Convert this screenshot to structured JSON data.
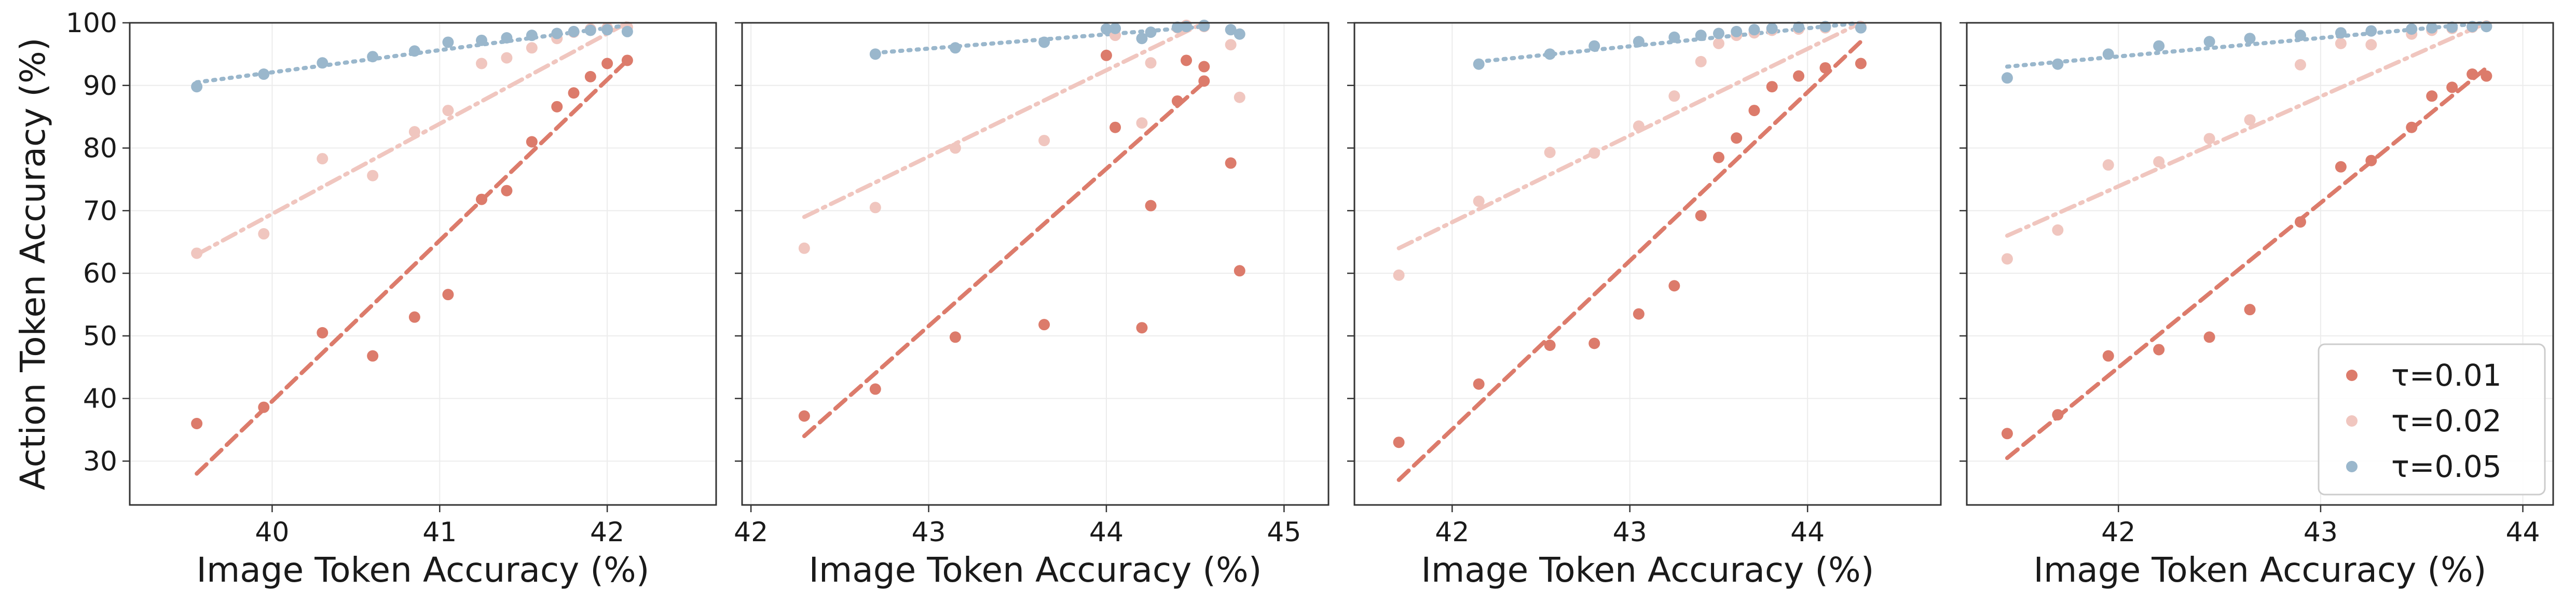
{
  "chart_data": [
    {
      "type": "scatter",
      "xlabel": "Image Token Accuracy (%)",
      "ylabel": "Action Token Accuracy (%)",
      "xlim": [
        39.15,
        42.65
      ],
      "ylim": [
        23,
        100
      ],
      "xticks": [
        40,
        41,
        42
      ],
      "yticks": [
        30,
        40,
        50,
        60,
        70,
        80,
        90,
        100
      ],
      "grid": true,
      "series": [
        {
          "name": "τ=0.01",
          "color": "#dc7b6b",
          "points": [
            [
              39.55,
              36.0
            ],
            [
              39.95,
              38.6
            ],
            [
              40.3,
              50.5
            ],
            [
              40.6,
              46.8
            ],
            [
              40.85,
              53.0
            ],
            [
              41.05,
              56.6
            ],
            [
              41.25,
              71.8
            ],
            [
              41.4,
              73.2
            ],
            [
              41.55,
              81.0
            ],
            [
              41.7,
              86.6
            ],
            [
              41.8,
              88.8
            ],
            [
              41.9,
              91.4
            ],
            [
              42.0,
              93.5
            ],
            [
              42.12,
              94.0
            ]
          ],
          "trend": {
            "style": "dashed",
            "x": [
              39.55,
              42.12
            ],
            "y": [
              28,
              94
            ]
          }
        },
        {
          "name": "τ=0.02",
          "color": "#f0c6bf",
          "points": [
            [
              39.55,
              63.2
            ],
            [
              39.95,
              66.3
            ],
            [
              40.3,
              78.3
            ],
            [
              40.6,
              75.6
            ],
            [
              40.85,
              82.6
            ],
            [
              41.05,
              86.0
            ],
            [
              41.25,
              93.5
            ],
            [
              41.4,
              94.4
            ],
            [
              41.55,
              96.0
            ],
            [
              41.7,
              97.5
            ],
            [
              41.8,
              98.5
            ],
            [
              41.9,
              99.0
            ],
            [
              42.0,
              99.2
            ],
            [
              42.12,
              99.3
            ]
          ],
          "trend": {
            "style": "dashdot",
            "x": [
              39.55,
              42.12
            ],
            "y": [
              63,
              100
            ]
          }
        },
        {
          "name": "τ=0.05",
          "color": "#9ab7cc",
          "points": [
            [
              39.55,
              89.8
            ],
            [
              39.95,
              91.8
            ],
            [
              40.3,
              93.6
            ],
            [
              40.6,
              94.6
            ],
            [
              40.85,
              95.5
            ],
            [
              41.05,
              96.9
            ],
            [
              41.25,
              97.2
            ],
            [
              41.4,
              97.6
            ],
            [
              41.55,
              98.0
            ],
            [
              41.7,
              98.3
            ],
            [
              41.8,
              98.6
            ],
            [
              41.9,
              98.8
            ],
            [
              42.0,
              98.9
            ],
            [
              42.12,
              98.6
            ]
          ],
          "trend": {
            "style": "dotted",
            "x": [
              39.55,
              42.12
            ],
            "y": [
              90.5,
              99.6
            ]
          }
        }
      ]
    },
    {
      "type": "scatter",
      "xlabel": "Image Token Accuracy (%)",
      "ylabel": "",
      "xlim": [
        41.95,
        45.25
      ],
      "ylim": [
        23,
        100
      ],
      "xticks": [
        42,
        43,
        44,
        45
      ],
      "yticks": [
        30,
        40,
        50,
        60,
        70,
        80,
        90,
        100
      ],
      "grid": true,
      "series": [
        {
          "name": "τ=0.01",
          "color": "#dc7b6b",
          "points": [
            [
              42.3,
              37.2
            ],
            [
              42.7,
              41.5
            ],
            [
              43.15,
              49.8
            ],
            [
              43.65,
              51.8
            ],
            [
              44.2,
              51.3
            ],
            [
              44.75,
              60.4
            ],
            [
              44.25,
              70.8
            ],
            [
              44.7,
              77.6
            ],
            [
              44.05,
              83.3
            ],
            [
              44.4,
              87.5
            ],
            [
              44.0,
              94.8
            ],
            [
              44.45,
              94.0
            ],
            [
              44.55,
              93.0
            ],
            [
              44.55,
              90.7
            ]
          ],
          "trend": {
            "style": "dashed",
            "x": [
              42.3,
              44.55
            ],
            "y": [
              34,
              90.5
            ]
          }
        },
        {
          "name": "τ=0.02",
          "color": "#f0c6bf",
          "points": [
            [
              42.3,
              64.0
            ],
            [
              42.7,
              70.5
            ],
            [
              43.15,
              80.0
            ],
            [
              43.65,
              81.2
            ],
            [
              44.2,
              84.0
            ],
            [
              44.75,
              88.1
            ],
            [
              44.25,
              93.6
            ],
            [
              44.7,
              96.5
            ],
            [
              44.05,
              98.0
            ],
            [
              44.4,
              99.2
            ],
            [
              44.0,
              99.0
            ],
            [
              44.45,
              99.6
            ],
            [
              44.55,
              99.5
            ],
            [
              44.55,
              99.4
            ]
          ],
          "trend": {
            "style": "dashdot",
            "x": [
              42.3,
              44.55
            ],
            "y": [
              69,
              100
            ]
          }
        },
        {
          "name": "τ=0.05",
          "color": "#9ab7cc",
          "points": [
            [
              42.7,
              95.0
            ],
            [
              43.15,
              96.0
            ],
            [
              43.65,
              96.9
            ],
            [
              44.2,
              97.5
            ],
            [
              44.75,
              98.2
            ],
            [
              44.25,
              98.5
            ],
            [
              44.7,
              98.9
            ],
            [
              44.05,
              99.1
            ],
            [
              44.4,
              99.3
            ],
            [
              44.0,
              99.0
            ],
            [
              44.45,
              99.4
            ],
            [
              44.55,
              99.5
            ],
            [
              44.55,
              99.6
            ]
          ],
          "trend": {
            "style": "dotted",
            "x": [
              42.7,
              44.55
            ],
            "y": [
              95.2,
              99.4
            ]
          }
        }
      ]
    },
    {
      "type": "scatter",
      "xlabel": "Image Token Accuracy (%)",
      "ylabel": "",
      "xlim": [
        41.45,
        44.75
      ],
      "ylim": [
        23,
        100
      ],
      "xticks": [
        42,
        43,
        44
      ],
      "yticks": [
        30,
        40,
        50,
        60,
        70,
        80,
        90,
        100
      ],
      "grid": true,
      "series": [
        {
          "name": "τ=0.01",
          "color": "#dc7b6b",
          "points": [
            [
              41.7,
              33.0
            ],
            [
              42.15,
              42.3
            ],
            [
              42.55,
              48.5
            ],
            [
              42.8,
              48.8
            ],
            [
              43.05,
              53.5
            ],
            [
              43.25,
              58.0
            ],
            [
              43.4,
              69.2
            ],
            [
              43.5,
              78.5
            ],
            [
              43.6,
              81.6
            ],
            [
              43.7,
              86.0
            ],
            [
              43.8,
              89.8
            ],
            [
              43.95,
              91.5
            ],
            [
              44.1,
              92.8
            ],
            [
              44.3,
              93.5
            ]
          ],
          "trend": {
            "style": "dashed",
            "x": [
              41.7,
              44.3
            ],
            "y": [
              27,
              97
            ]
          }
        },
        {
          "name": "τ=0.02",
          "color": "#f0c6bf",
          "points": [
            [
              41.7,
              59.7
            ],
            [
              42.15,
              71.5
            ],
            [
              42.55,
              79.3
            ],
            [
              42.8,
              79.2
            ],
            [
              43.05,
              83.5
            ],
            [
              43.25,
              88.3
            ],
            [
              43.4,
              93.8
            ],
            [
              43.5,
              96.7
            ],
            [
              43.6,
              98.0
            ],
            [
              43.7,
              98.4
            ],
            [
              43.8,
              98.8
            ],
            [
              43.95,
              99.0
            ],
            [
              44.1,
              99.2
            ],
            [
              44.3,
              99.4
            ]
          ],
          "trend": {
            "style": "dashdot",
            "x": [
              41.7,
              44.3
            ],
            "y": [
              64,
              100
            ]
          }
        },
        {
          "name": "τ=0.05",
          "color": "#9ab7cc",
          "points": [
            [
              42.15,
              93.4
            ],
            [
              42.55,
              95.0
            ],
            [
              42.8,
              96.3
            ],
            [
              43.05,
              97.0
            ],
            [
              43.25,
              97.7
            ],
            [
              43.4,
              98.0
            ],
            [
              43.5,
              98.3
            ],
            [
              43.6,
              98.6
            ],
            [
              43.7,
              98.9
            ],
            [
              43.8,
              99.1
            ],
            [
              43.95,
              99.3
            ],
            [
              44.1,
              99.4
            ],
            [
              44.3,
              99.2
            ]
          ],
          "trend": {
            "style": "dotted",
            "x": [
              42.15,
              44.3
            ],
            "y": [
              93.8,
              100
            ]
          }
        }
      ]
    },
    {
      "type": "scatter",
      "xlabel": "Image Token Accuracy (%)",
      "ylabel": "",
      "xlim": [
        41.25,
        44.15
      ],
      "ylim": [
        23,
        100
      ],
      "xticks": [
        42,
        43,
        44
      ],
      "yticks": [
        30,
        40,
        50,
        60,
        70,
        80,
        90,
        100
      ],
      "grid": true,
      "legend": {
        "location": "lower-right",
        "entries": [
          "τ=0.01",
          "τ=0.02",
          "τ=0.05"
        ]
      },
      "series": [
        {
          "name": "τ=0.01",
          "color": "#dc7b6b",
          "points": [
            [
              41.45,
              34.4
            ],
            [
              41.7,
              37.4
            ],
            [
              41.95,
              46.8
            ],
            [
              42.2,
              47.8
            ],
            [
              42.45,
              49.8
            ],
            [
              42.65,
              54.2
            ],
            [
              42.9,
              68.2
            ],
            [
              43.1,
              77.0
            ],
            [
              43.25,
              78.0
            ],
            [
              43.45,
              83.3
            ],
            [
              43.55,
              88.3
            ],
            [
              43.65,
              89.7
            ],
            [
              43.75,
              91.8
            ],
            [
              43.82,
              91.5
            ]
          ],
          "trend": {
            "style": "dashed",
            "x": [
              41.45,
              43.82
            ],
            "y": [
              30.5,
              92.8
            ]
          }
        },
        {
          "name": "τ=0.02",
          "color": "#f0c6bf",
          "points": [
            [
              41.45,
              62.3
            ],
            [
              41.7,
              66.9
            ],
            [
              41.95,
              77.3
            ],
            [
              42.2,
              77.8
            ],
            [
              42.45,
              81.5
            ],
            [
              42.65,
              84.5
            ],
            [
              42.9,
              93.3
            ],
            [
              43.1,
              96.7
            ],
            [
              43.25,
              96.5
            ],
            [
              43.45,
              98.2
            ],
            [
              43.55,
              98.8
            ],
            [
              43.65,
              99.1
            ],
            [
              43.75,
              99.3
            ],
            [
              43.82,
              99.5
            ]
          ],
          "trend": {
            "style": "dashdot",
            "x": [
              41.45,
              43.82
            ],
            "y": [
              66,
              100
            ]
          }
        },
        {
          "name": "τ=0.05",
          "color": "#9ab7cc",
          "points": [
            [
              41.45,
              91.2
            ],
            [
              41.7,
              93.4
            ],
            [
              41.95,
              95.0
            ],
            [
              42.2,
              96.3
            ],
            [
              42.45,
              97.0
            ],
            [
              42.65,
              97.5
            ],
            [
              42.9,
              98.0
            ],
            [
              43.1,
              98.4
            ],
            [
              43.25,
              98.7
            ],
            [
              43.45,
              99.0
            ],
            [
              43.55,
              99.2
            ],
            [
              43.65,
              99.3
            ],
            [
              43.75,
              99.4
            ],
            [
              43.82,
              99.4
            ]
          ],
          "trend": {
            "style": "dotted",
            "x": [
              41.45,
              43.82
            ],
            "y": [
              93,
              100
            ]
          }
        }
      ]
    }
  ]
}
